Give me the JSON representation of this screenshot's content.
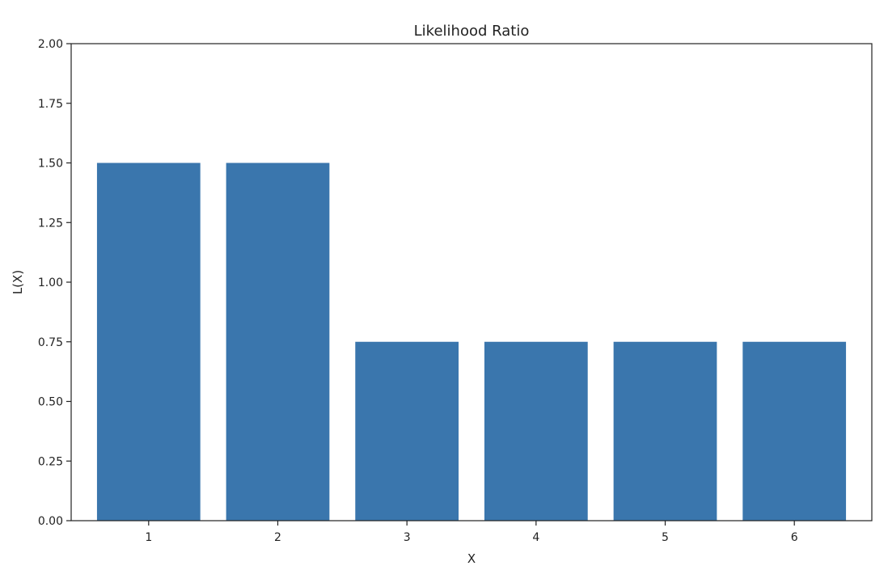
{
  "chart_data": {
    "type": "bar",
    "title": "Likelihood Ratio",
    "xlabel": "X",
    "ylabel": "L(X)",
    "categories": [
      "1",
      "2",
      "3",
      "4",
      "5",
      "6"
    ],
    "values": [
      1.5,
      1.5,
      0.75,
      0.75,
      0.75,
      0.75
    ],
    "ylim": [
      0,
      2
    ],
    "yticks": [
      "0.00",
      "0.25",
      "0.50",
      "0.75",
      "1.00",
      "1.25",
      "1.50",
      "1.75",
      "2.00"
    ],
    "grid": false,
    "bar_color": "#3a76ad"
  }
}
